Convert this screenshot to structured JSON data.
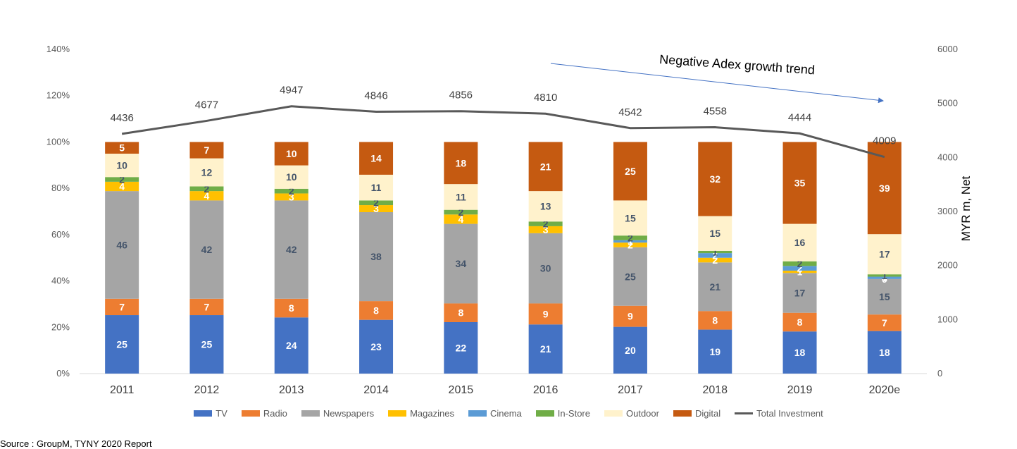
{
  "chart_data": {
    "type": "bar",
    "stacked": true,
    "categories": [
      "2011",
      "2012",
      "2013",
      "2014",
      "2015",
      "2016",
      "2017",
      "2018",
      "2019",
      "2020e"
    ],
    "series": [
      {
        "name": "TV",
        "color": "#4472C4",
        "label_color": "#ffffff",
        "values": [
          25,
          25,
          24,
          23,
          22,
          21,
          20,
          19,
          18,
          18
        ]
      },
      {
        "name": "Radio",
        "color": "#ED7D31",
        "label_color": "#ffffff",
        "values": [
          7,
          7,
          8,
          8,
          8,
          9,
          9,
          8,
          8,
          7
        ]
      },
      {
        "name": "Newspapers",
        "color": "#A5A5A5",
        "label_color": "#44546A",
        "values": [
          46,
          42,
          42,
          38,
          34,
          30,
          25,
          21,
          17,
          15
        ]
      },
      {
        "name": "Magazines",
        "color": "#FFC000",
        "label_color": "#ffffff",
        "values": [
          4,
          4,
          3,
          3,
          4,
          3,
          2,
          2,
          1,
          0
        ]
      },
      {
        "name": "Cinema",
        "color": "#5B9BD5",
        "label_color": "#ffffff",
        "values": [
          0,
          0,
          0,
          0,
          0,
          0,
          1,
          2,
          2,
          1
        ]
      },
      {
        "name": "In-Store",
        "color": "#70AD47",
        "label_color": "#44546A",
        "values": [
          2,
          2,
          2,
          2,
          2,
          2,
          2,
          1,
          2,
          1
        ]
      },
      {
        "name": "Outdoor",
        "color": "#FFF2CC",
        "label_color": "#44546A",
        "values": [
          10,
          12,
          10,
          11,
          11,
          13,
          15,
          15,
          16,
          17
        ]
      },
      {
        "name": "Digital",
        "color": "#C55A11",
        "label_color": "#ffffff",
        "values": [
          5,
          7,
          10,
          14,
          18,
          21,
          25,
          32,
          35,
          39
        ]
      }
    ],
    "line": {
      "name": "Total Investment",
      "color": "#595959",
      "values": [
        4436,
        4677,
        4947,
        4846,
        4856,
        4810,
        4542,
        4558,
        4444,
        4009
      ]
    },
    "y_left": {
      "min": 0,
      "max": 140,
      "step": 20,
      "ticks": [
        "0%",
        "20%",
        "40%",
        "60%",
        "80%",
        "100%",
        "120%",
        "140%"
      ]
    },
    "y_right": {
      "min": 0,
      "max": 6000,
      "step": 1000,
      "ticks": [
        "0",
        "1000",
        "2000",
        "3000",
        "4000",
        "5000",
        "6000"
      ],
      "label": "MYR m, Net"
    },
    "annotation": "Negative Adex growth trend",
    "legend_position": "bottom"
  },
  "source": "Source : GroupM, TYNY 2020 Report"
}
